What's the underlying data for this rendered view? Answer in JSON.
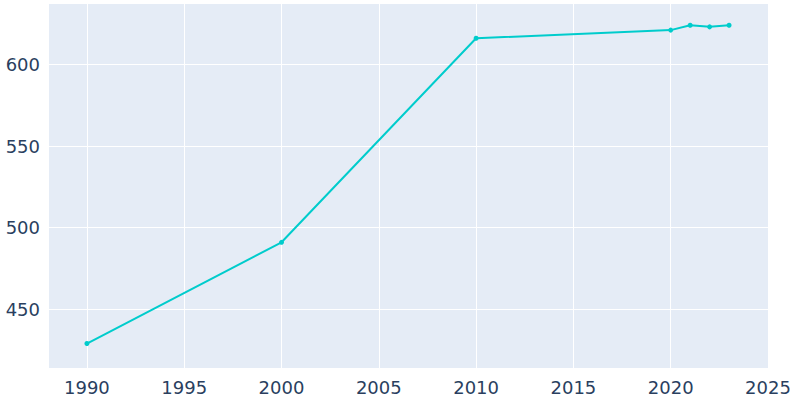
{
  "chart_data": {
    "type": "line",
    "x": [
      1990,
      2000,
      2010,
      2020,
      2021,
      2022,
      2023
    ],
    "values": [
      429,
      491,
      616,
      621,
      624,
      623,
      624
    ],
    "color": "#00cccc",
    "marker": "circle",
    "xlim": [
      1988,
      2025
    ],
    "xticks": [
      1990,
      1995,
      2000,
      2005,
      2010,
      2015,
      2020,
      2025
    ],
    "ylim": [
      414,
      637
    ],
    "yticks": [
      450,
      500,
      550,
      600
    ],
    "grid": true
  }
}
